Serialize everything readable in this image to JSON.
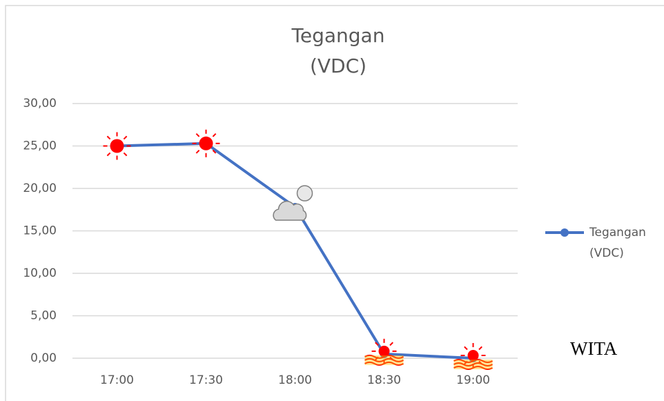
{
  "chart_data": {
    "type": "line",
    "title": "Tegangan (VDC)",
    "categories": [
      "17:00",
      "17:30",
      "18:00",
      "18:30",
      "19:00"
    ],
    "series": [
      {
        "name": "Tegangan (VDC)",
        "color": "#4472c4",
        "values": [
          25.0,
          25.3,
          17.8,
          0.5,
          0.0
        ]
      }
    ],
    "ylim": [
      0,
      30
    ],
    "yticks": [
      {
        "value": 0,
        "label": "0,00"
      },
      {
        "value": 5,
        "label": "5,00"
      },
      {
        "value": 10,
        "label": "10,00"
      },
      {
        "value": 15,
        "label": "15,00"
      },
      {
        "value": 20,
        "label": "20,00"
      },
      {
        "value": 25,
        "label": "25,00"
      },
      {
        "value": 30,
        "label": "30,00"
      }
    ],
    "grid": true,
    "legend": "right",
    "annotation": "WITA"
  }
}
